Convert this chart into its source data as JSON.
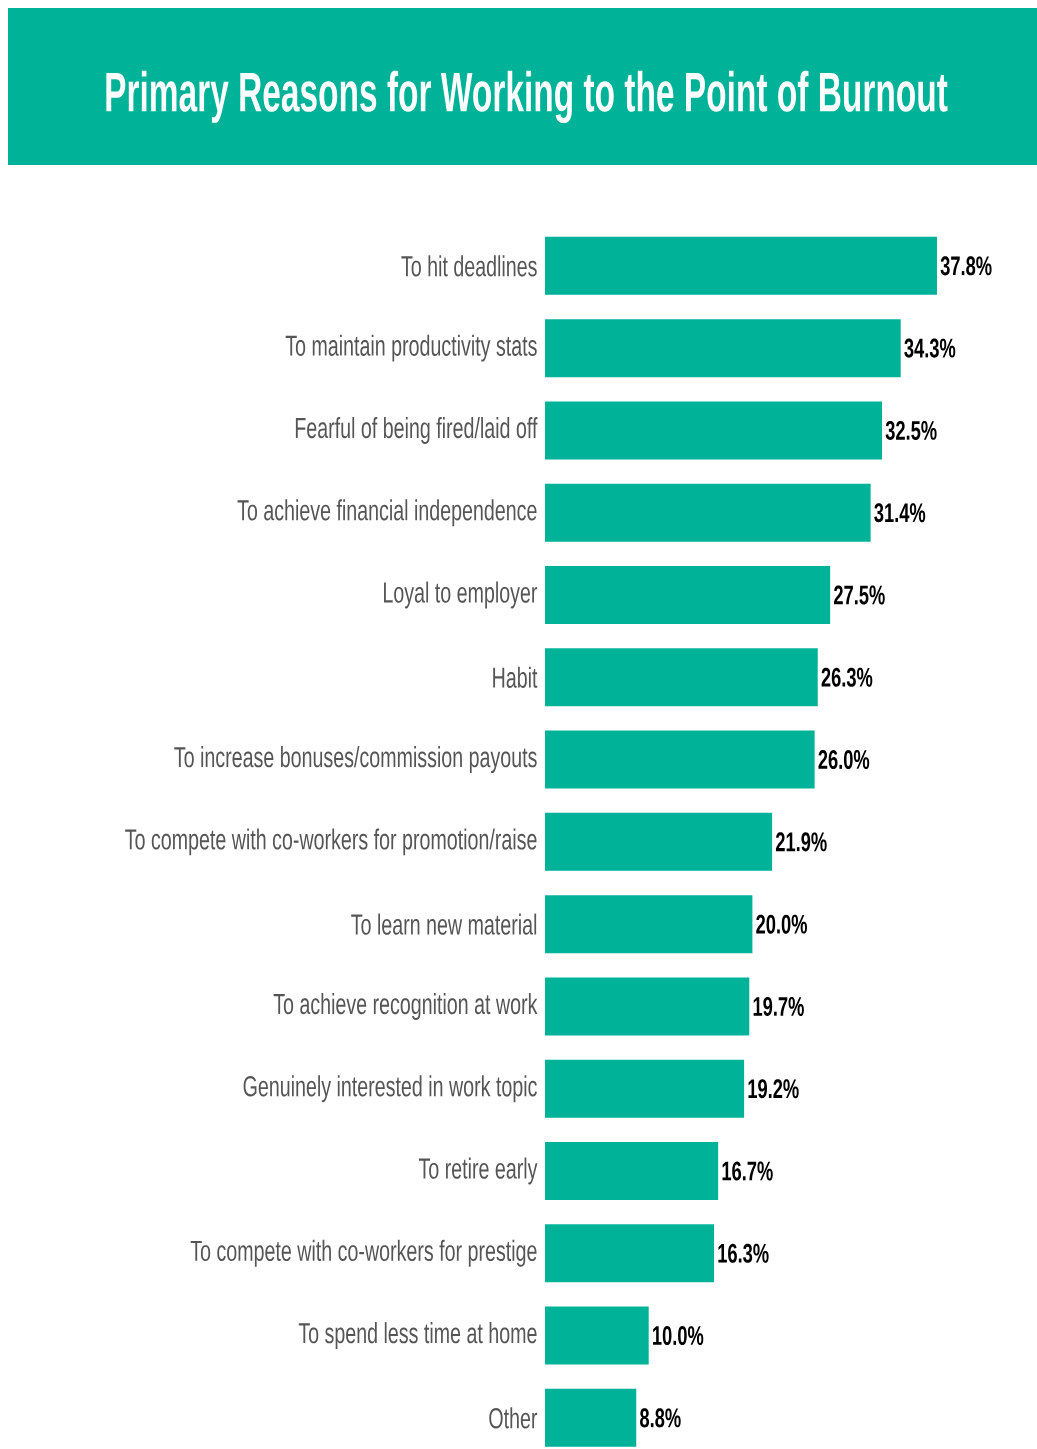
{
  "chart_data": {
    "type": "bar",
    "orientation": "horizontal",
    "title": "Primary Reasons for Working to the Point of Burnout",
    "color": "#00b398",
    "tick_labels": "y",
    "categories": [
      "To hit deadlines",
      "To maintain productivity stats",
      "Fearful of being fired/laid off",
      "To achieve financial independence",
      "Loyal to employer",
      "Habit",
      "To increase bonuses/commission payouts",
      "To compete with co-workers for promotion/raise",
      "To learn new material",
      "To achieve recognition at work",
      "Genuinely interested in work topic",
      "To retire early",
      "To compete with co-workers for prestige",
      "To spend less time at home",
      "Other"
    ],
    "values": [
      37.8,
      34.3,
      32.5,
      31.4,
      27.5,
      26.3,
      26.0,
      21.9,
      20.0,
      19.7,
      19.2,
      16.7,
      16.3,
      10.0,
      8.8
    ],
    "value_labels": [
      "37.8%",
      "34.3%",
      "32.5%",
      "31.4%",
      "27.5%",
      "26.3%",
      "26.0%",
      "21.9%",
      "20.0%",
      "19.7%",
      "19.2%",
      "16.7%",
      "16.3%",
      "10.0%",
      "8.8%"
    ]
  }
}
